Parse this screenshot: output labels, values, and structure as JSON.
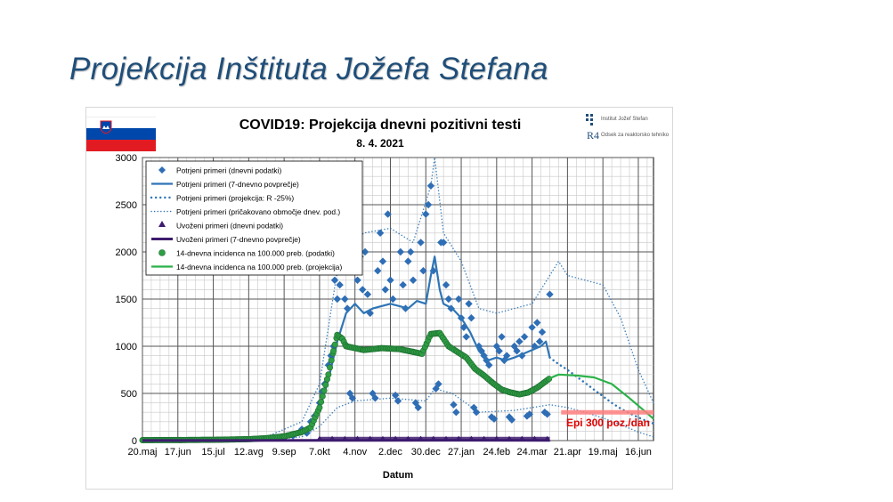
{
  "slide": {
    "title": "Projekcija Inštituta Jožefa Stefana"
  },
  "logos": {
    "institute": "Institut Jožef Stefan",
    "department": "Odsek za reaktorsko tehniko",
    "r4": "R4"
  },
  "colors": {
    "title": "#1f4e79",
    "blue": "#2e75b6",
    "diamond": "#2f6eb5",
    "green": "#2cb24a",
    "green_dot": "#2e9e44",
    "purple": "#3d1b6e",
    "threshold": "#ff8080",
    "threshold_text": "#e00000"
  },
  "chart_data": {
    "type": "line",
    "title": "COVID19: Projekcija dnevni pozitivni testi",
    "subtitle": "8. 4. 2021",
    "xlabel": "Datum",
    "ylabel": "",
    "ylim": [
      0,
      3000
    ],
    "yticks": [
      0,
      500,
      1000,
      1500,
      2000,
      2500,
      3000
    ],
    "xticks": [
      "20.maj",
      "17.jun",
      "15.jul",
      "12.avg",
      "9.sep",
      "7.okt",
      "4.nov",
      "2.dec",
      "30.dec",
      "27.jan",
      "24.feb",
      "24.mar",
      "21.apr",
      "19.maj",
      "16.jun"
    ],
    "xlim_days": [
      0,
      404
    ],
    "grid": true,
    "legend_position": "top-left",
    "annotation": {
      "text": "Epi 300 poz./dan",
      "value": 300
    },
    "legend": [
      "Potrjeni primeri (dnevni podatki)",
      "Potrjeni primeri (7-dnevno povprečje)",
      "Potrjeni primeri (projekcija: R -25%)",
      "Potrjeni primeri (pričakovano območje dnev. pod.)",
      "Uvoženi primeri (dnevni podatki)",
      "Uvoženi primeri (7-dnevno povprečje)",
      "14-dnevna incidenca na 100.000 preb. (podatki)",
      "14-dnevna incidenca na 100.000 preb. (projekcija)"
    ],
    "series": [
      {
        "name": "Potrjeni primeri (7-dnevno povprečje)",
        "style": "line",
        "points": [
          [
            0,
            5
          ],
          [
            30,
            6
          ],
          [
            60,
            8
          ],
          [
            84,
            12
          ],
          [
            98,
            20
          ],
          [
            112,
            40
          ],
          [
            126,
            100
          ],
          [
            133,
            150
          ],
          [
            140,
            330
          ],
          [
            147,
            650
          ],
          [
            154,
            1050
          ],
          [
            161,
            1350
          ],
          [
            168,
            1450
          ],
          [
            175,
            1350
          ],
          [
            182,
            1400
          ],
          [
            196,
            1450
          ],
          [
            210,
            1400
          ],
          [
            217,
            1480
          ],
          [
            224,
            1450
          ],
          [
            228,
            1750
          ],
          [
            231,
            1950
          ],
          [
            235,
            1600
          ],
          [
            238,
            1450
          ],
          [
            245,
            1400
          ],
          [
            252,
            1300
          ],
          [
            259,
            1150
          ],
          [
            266,
            950
          ],
          [
            273,
            850
          ],
          [
            280,
            880
          ],
          [
            287,
            850
          ],
          [
            294,
            880
          ],
          [
            301,
            920
          ],
          [
            308,
            960
          ],
          [
            315,
            1000
          ],
          [
            319,
            1050
          ],
          [
            322,
            880
          ]
        ]
      },
      {
        "name": "Potrjeni primeri (projekcija: R -25%)",
        "style": "dotted",
        "points": [
          [
            322,
            880
          ],
          [
            329,
            810
          ],
          [
            336,
            750
          ],
          [
            343,
            680
          ],
          [
            350,
            610
          ],
          [
            357,
            540
          ],
          [
            364,
            470
          ],
          [
            371,
            400
          ],
          [
            378,
            340
          ],
          [
            385,
            290
          ],
          [
            392,
            245
          ],
          [
            399,
            205
          ],
          [
            404,
            180
          ]
        ]
      },
      {
        "name": "Potrjeni primeri (pričakovano območje dnev. pod.) - upper",
        "style": "dotted-thin",
        "points": [
          [
            0,
            15
          ],
          [
            60,
            20
          ],
          [
            98,
            40
          ],
          [
            126,
            200
          ],
          [
            140,
            600
          ],
          [
            154,
            1800
          ],
          [
            161,
            2050
          ],
          [
            175,
            2200
          ],
          [
            196,
            2250
          ],
          [
            214,
            2100
          ],
          [
            228,
            2700
          ],
          [
            231,
            3000
          ],
          [
            238,
            2200
          ],
          [
            252,
            1900
          ],
          [
            266,
            1400
          ],
          [
            280,
            1350
          ],
          [
            294,
            1400
          ],
          [
            308,
            1450
          ],
          [
            322,
            1750
          ],
          [
            329,
            1900
          ],
          [
            336,
            1750
          ],
          [
            350,
            1700
          ],
          [
            364,
            1650
          ],
          [
            378,
            1300
          ],
          [
            392,
            750
          ],
          [
            404,
            400
          ]
        ]
      },
      {
        "name": "Potrjeni primeri (pričakovano območje dnev. pod.) - lower",
        "style": "dotted-thin",
        "points": [
          [
            0,
            0
          ],
          [
            98,
            5
          ],
          [
            126,
            40
          ],
          [
            140,
            150
          ],
          [
            154,
            350
          ],
          [
            168,
            420
          ],
          [
            196,
            450
          ],
          [
            224,
            420
          ],
          [
            231,
            550
          ],
          [
            245,
            500
          ],
          [
            266,
            300
          ],
          [
            294,
            320
          ],
          [
            322,
            380
          ],
          [
            336,
            350
          ],
          [
            350,
            300
          ],
          [
            364,
            240
          ],
          [
            378,
            170
          ],
          [
            392,
            90
          ],
          [
            404,
            40
          ]
        ]
      },
      {
        "name": "14-dnevna incidenca na 100.000 preb. (podatki)",
        "style": "dots",
        "points": [
          [
            0,
            5
          ],
          [
            30,
            6
          ],
          [
            60,
            9
          ],
          [
            84,
            15
          ],
          [
            98,
            25
          ],
          [
            112,
            45
          ],
          [
            126,
            90
          ],
          [
            133,
            140
          ],
          [
            140,
            350
          ],
          [
            147,
            700
          ],
          [
            151,
            950
          ],
          [
            154,
            1120
          ],
          [
            158,
            1080
          ],
          [
            161,
            1000
          ],
          [
            175,
            960
          ],
          [
            189,
            980
          ],
          [
            203,
            970
          ],
          [
            214,
            940
          ],
          [
            221,
            920
          ],
          [
            228,
            1130
          ],
          [
            235,
            1140
          ],
          [
            242,
            1000
          ],
          [
            249,
            940
          ],
          [
            256,
            880
          ],
          [
            263,
            760
          ],
          [
            270,
            690
          ],
          [
            277,
            610
          ],
          [
            284,
            540
          ],
          [
            291,
            510
          ],
          [
            298,
            490
          ],
          [
            305,
            510
          ],
          [
            312,
            560
          ],
          [
            319,
            630
          ],
          [
            322,
            660
          ]
        ]
      },
      {
        "name": "14-dnevna incidenca na 100.000 preb. (projekcija)",
        "style": "line",
        "points": [
          [
            322,
            660
          ],
          [
            329,
            700
          ],
          [
            343,
            690
          ],
          [
            357,
            670
          ],
          [
            371,
            600
          ],
          [
            385,
            450
          ],
          [
            399,
            290
          ],
          [
            404,
            230
          ]
        ]
      },
      {
        "name": "Uvoženi primeri (7-dnevno povprečje)",
        "style": "line",
        "points": [
          [
            0,
            1
          ],
          [
            140,
            2
          ],
          [
            180,
            3
          ],
          [
            260,
            4
          ],
          [
            322,
            3
          ]
        ]
      },
      {
        "name": "Potrjeni primeri (dnevni podatki)",
        "style": "diamond",
        "points": [
          [
            112,
            30
          ],
          [
            119,
            50
          ],
          [
            126,
            120
          ],
          [
            130,
            80
          ],
          [
            133,
            200
          ],
          [
            136,
            260
          ],
          [
            140,
            400
          ],
          [
            142,
            520
          ],
          [
            144,
            600
          ],
          [
            147,
            800
          ],
          [
            149,
            900
          ],
          [
            151,
            1000
          ],
          [
            152,
            1700
          ],
          [
            154,
            1500
          ],
          [
            156,
            1650
          ],
          [
            158,
            1800
          ],
          [
            160,
            1500
          ],
          [
            162,
            1400
          ],
          [
            164,
            500
          ],
          [
            166,
            450
          ],
          [
            168,
            1850
          ],
          [
            170,
            1700
          ],
          [
            172,
            1950
          ],
          [
            174,
            1600
          ],
          [
            176,
            2000
          ],
          [
            178,
            1550
          ],
          [
            180,
            1350
          ],
          [
            182,
            500
          ],
          [
            184,
            450
          ],
          [
            186,
            1800
          ],
          [
            188,
            2200
          ],
          [
            190,
            1900
          ],
          [
            192,
            1600
          ],
          [
            194,
            2400
          ],
          [
            196,
            1700
          ],
          [
            198,
            1500
          ],
          [
            200,
            480
          ],
          [
            202,
            420
          ],
          [
            204,
            2000
          ],
          [
            206,
            1650
          ],
          [
            208,
            1400
          ],
          [
            210,
            1900
          ],
          [
            212,
            2000
          ],
          [
            214,
            1700
          ],
          [
            216,
            400
          ],
          [
            218,
            350
          ],
          [
            220,
            2100
          ],
          [
            222,
            1800
          ],
          [
            224,
            2400
          ],
          [
            226,
            2500
          ],
          [
            228,
            2700
          ],
          [
            230,
            1800
          ],
          [
            232,
            550
          ],
          [
            234,
            600
          ],
          [
            236,
            2100
          ],
          [
            238,
            2100
          ],
          [
            240,
            1650
          ],
          [
            242,
            1500
          ],
          [
            244,
            1400
          ],
          [
            246,
            380
          ],
          [
            248,
            300
          ],
          [
            250,
            1500
          ],
          [
            252,
            1300
          ],
          [
            254,
            1200
          ],
          [
            256,
            1100
          ],
          [
            258,
            1450
          ],
          [
            260,
            1300
          ],
          [
            262,
            350
          ],
          [
            264,
            300
          ],
          [
            266,
            1000
          ],
          [
            268,
            950
          ],
          [
            270,
            900
          ],
          [
            272,
            850
          ],
          [
            274,
            800
          ],
          [
            276,
            250
          ],
          [
            278,
            230
          ],
          [
            280,
            1000
          ],
          [
            282,
            950
          ],
          [
            284,
            1100
          ],
          [
            286,
            850
          ],
          [
            288,
            900
          ],
          [
            290,
            250
          ],
          [
            292,
            220
          ],
          [
            294,
            1000
          ],
          [
            296,
            950
          ],
          [
            298,
            1050
          ],
          [
            300,
            900
          ],
          [
            302,
            1100
          ],
          [
            304,
            260
          ],
          [
            306,
            280
          ],
          [
            308,
            1200
          ],
          [
            310,
            1000
          ],
          [
            312,
            1250
          ],
          [
            314,
            1050
          ],
          [
            316,
            1150
          ],
          [
            318,
            300
          ],
          [
            320,
            280
          ],
          [
            322,
            1550
          ]
        ]
      },
      {
        "name": "Uvoženi primeri (dnevni podatki)",
        "style": "triangle",
        "points": [
          [
            140,
            2
          ],
          [
            150,
            3
          ],
          [
            160,
            2
          ],
          [
            170,
            4
          ],
          [
            180,
            3
          ],
          [
            190,
            2
          ],
          [
            200,
            3
          ],
          [
            210,
            2
          ],
          [
            220,
            4
          ],
          [
            230,
            3
          ],
          [
            240,
            2
          ],
          [
            250,
            3
          ],
          [
            260,
            4
          ],
          [
            270,
            2
          ],
          [
            280,
            3
          ],
          [
            290,
            2
          ],
          [
            300,
            4
          ],
          [
            310,
            3
          ],
          [
            320,
            2
          ]
        ]
      }
    ]
  }
}
